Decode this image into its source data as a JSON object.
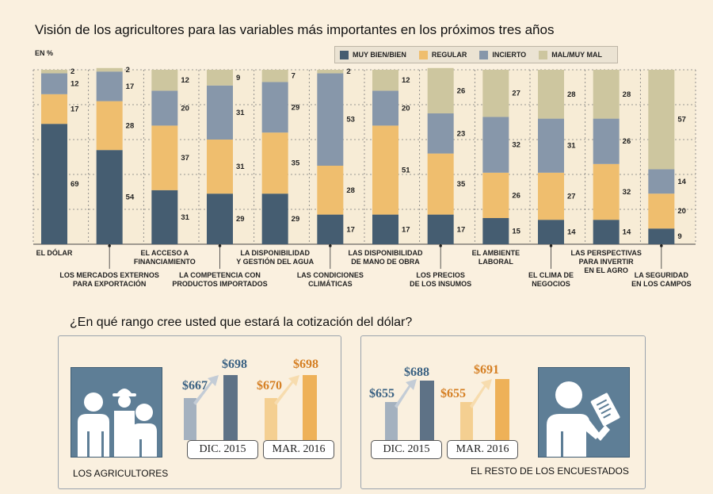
{
  "title": "Visión de los agricultores para las variables más importantes en los próximos tres años",
  "unit_label": "EN %",
  "colors": {
    "muy_bien": "#455d71",
    "regular": "#efbe6e",
    "incierto": "#8797aa",
    "mal": "#cdc69f",
    "dollar_blue": "#3b6283",
    "dollar_orange": "#d57f23"
  },
  "chart_data": {
    "type": "bar",
    "stacked": true,
    "ylim": [
      0,
      100
    ],
    "categories": [
      "EL DÓLAR",
      "LOS MERCADOS EXTERNOS PARA EXPORTACIÓN",
      "EL ACCESO A FINANCIAMIENTO",
      "LA COMPETENCIA CON PRODUCTOS IMPORTADOS",
      "LA DISPONIBILIDAD Y GESTIÓN DEL AGUA",
      "LAS CONDICIONES CLIMÁTICAS",
      "LAS DISPONIBILIDAD DE MANO DE OBRA",
      "LOS PRECIOS DE LOS INSUMOS",
      "EL AMBIENTE LABORAL",
      "EL CLIMA DE NEGOCIOS",
      "LAS PERSPECTIVAS PARA INVERTIR EN EL AGRO",
      "LA SEGURIDAD EN LOS CAMPOS"
    ],
    "category_label_lines": [
      [
        "EL DÓLAR"
      ],
      [
        "LOS MERCADOS EXTERNOS",
        "PARA EXPORTACIÓN"
      ],
      [
        "EL ACCESO A",
        "FINANCIAMIENTO"
      ],
      [
        "LA COMPETENCIA CON",
        "PRODUCTOS IMPORTADOS"
      ],
      [
        "LA DISPONIBILIDAD",
        "Y GESTIÓN DEL AGUA"
      ],
      [
        "LAS CONDICIONES",
        "CLIMÁTICAS"
      ],
      [
        "LAS DISPONIBILIDAD",
        "DE MANO DE OBRA"
      ],
      [
        "LOS PRECIOS",
        "DE LOS INSUMOS"
      ],
      [
        "EL AMBIENTE",
        "LABORAL"
      ],
      [
        "EL CLIMA DE",
        "NEGOCIOS"
      ],
      [
        "LAS PERSPECTIVAS",
        "PARA INVERTIR",
        "EN EL AGRO"
      ],
      [
        "LA SEGURIDAD",
        "EN LOS CAMPOS"
      ]
    ],
    "series": [
      {
        "name": "MUY BIEN/BIEN",
        "color": "#455d71",
        "values": [
          69,
          54,
          31,
          29,
          29,
          17,
          17,
          17,
          15,
          14,
          14,
          9
        ]
      },
      {
        "name": "REGULAR",
        "color": "#efbe6e",
        "values": [
          17,
          28,
          37,
          31,
          35,
          28,
          51,
          35,
          26,
          27,
          32,
          20
        ]
      },
      {
        "name": "INCIERTO",
        "color": "#8797aa",
        "values": [
          12,
          17,
          20,
          31,
          29,
          53,
          20,
          23,
          32,
          31,
          26,
          14
        ]
      },
      {
        "name": "MAL/MUY MAL",
        "color": "#cdc69f",
        "values": [
          2,
          2,
          12,
          9,
          7,
          2,
          12,
          26,
          27,
          28,
          28,
          57
        ]
      }
    ],
    "grid": true,
    "legend_position": "top-right"
  },
  "question": "¿En qué rango cree usted que estará la cotización del dólar?",
  "panels": {
    "agricultores": {
      "label": "LOS AGRICULTORES",
      "icon": "farmers-group-icon",
      "dic": {
        "prefix": "$",
        "from": "667",
        "to": "698",
        "period": "DIC. 2015"
      },
      "mar": {
        "prefix": "$",
        "from": "670",
        "to": "698",
        "period": "MAR. 2016"
      }
    },
    "resto": {
      "label": "EL RESTO DE LOS ENCUESTADOS",
      "icon": "respondent-questionnaire-icon",
      "dic": {
        "prefix": "$",
        "from": "655",
        "to": "688",
        "period": "DIC. 2015"
      },
      "mar": {
        "prefix": "$",
        "from": "655",
        "to": "691",
        "period": "MAR. 2016"
      }
    }
  }
}
